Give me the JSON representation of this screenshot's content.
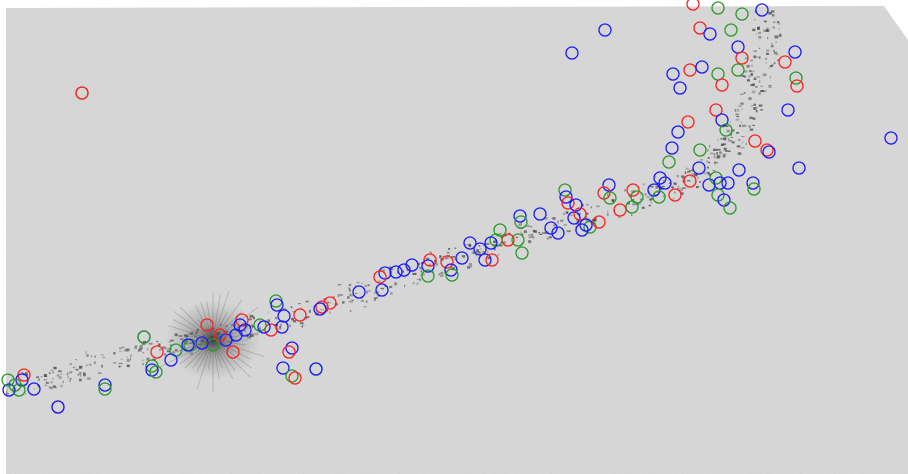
{
  "image": {
    "background_color": "#ffffff",
    "field_color": "#dcdcdc",
    "streak_color": "#3a3a3a",
    "marker_colors": {
      "blue": "#1a1aff",
      "red": "#ff2020",
      "green": "#2a9a2a"
    }
  }
}
